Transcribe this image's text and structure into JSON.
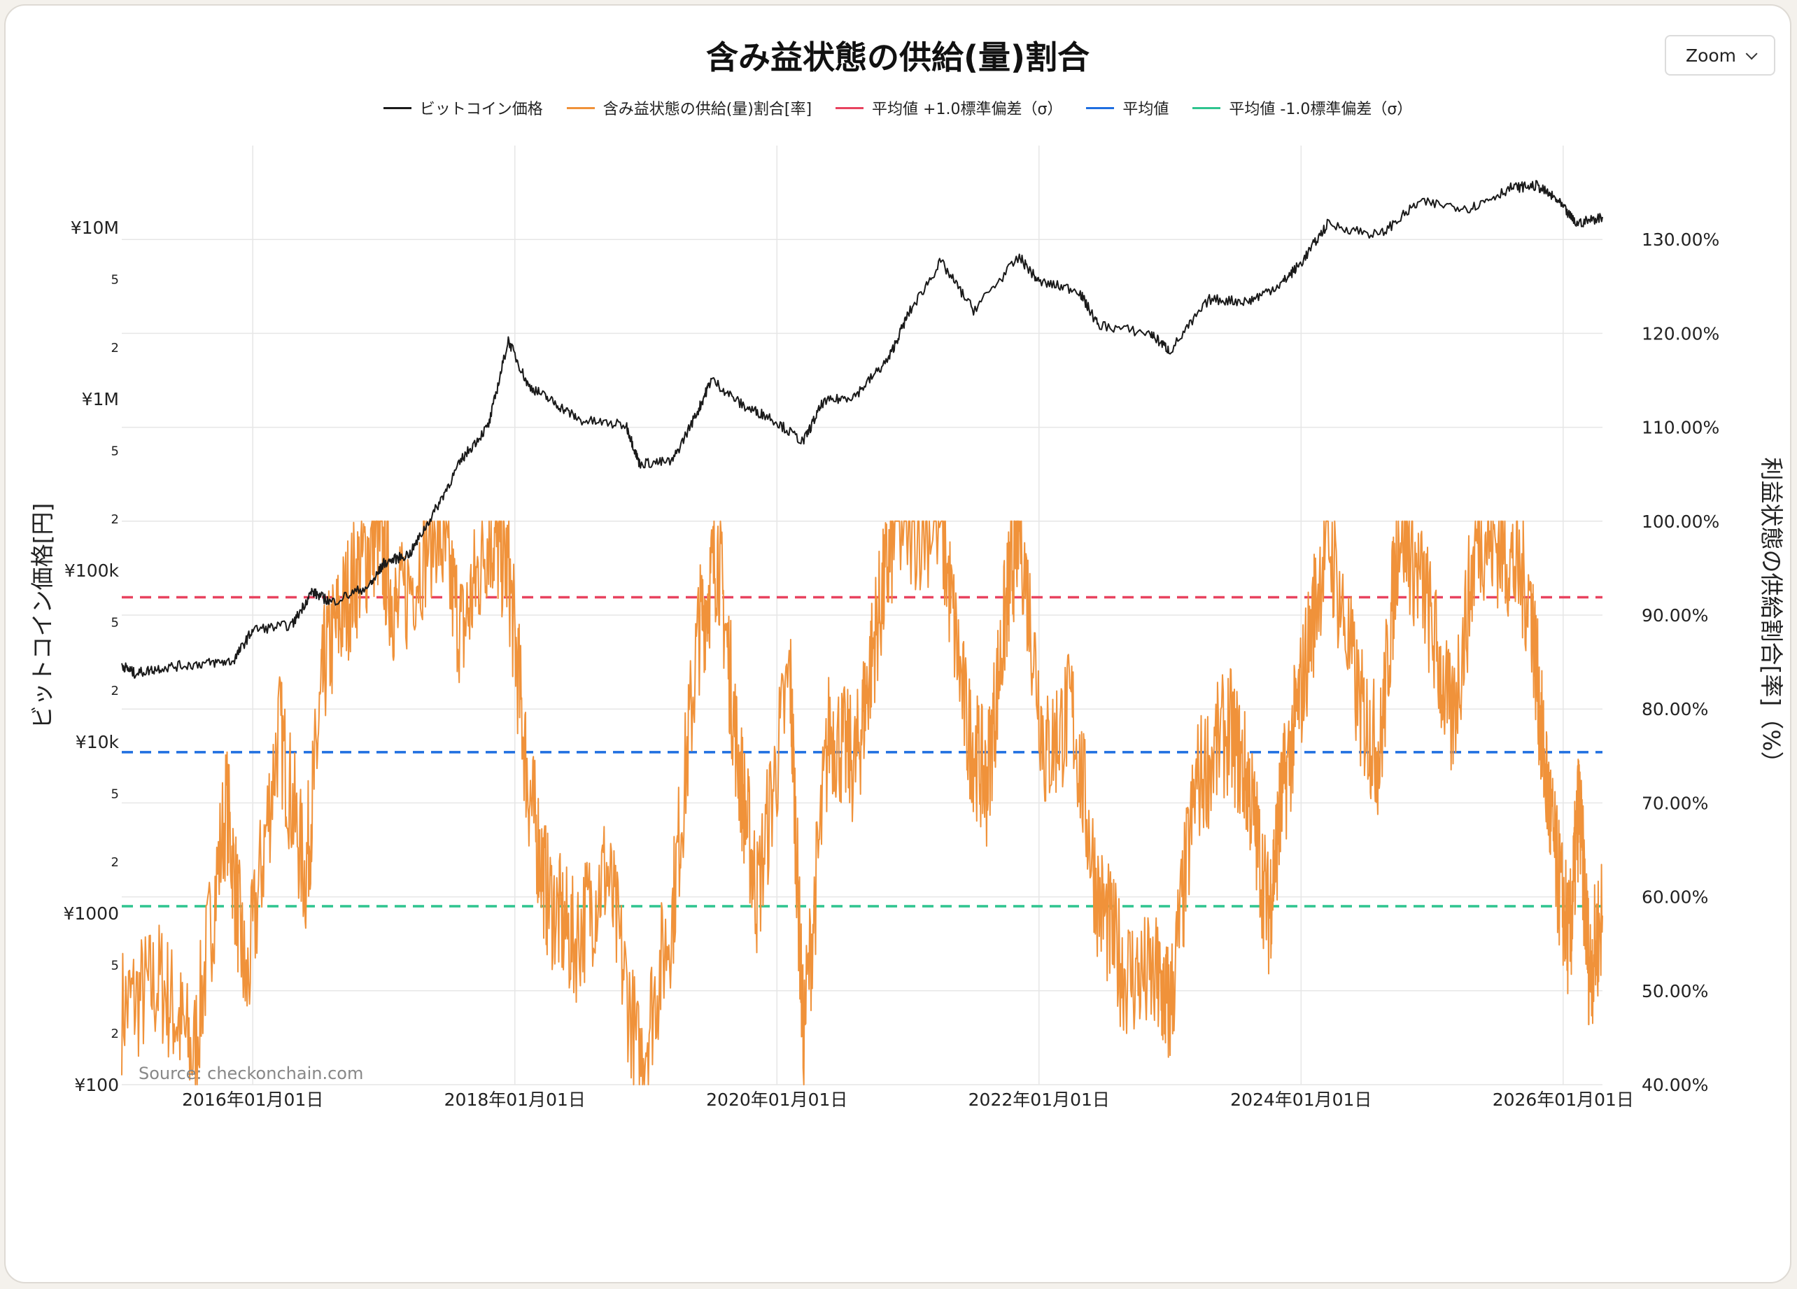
{
  "title": "含み益状態の供給(量)割合",
  "zoom_label": "Zoom",
  "source_text": "Source: checkonchain.com",
  "legend": [
    {
      "label": "ビットコイン価格",
      "color": "#1a1a1a"
    },
    {
      "label": "含み益状態の供給(量)割合[率]",
      "color": "#f0923a"
    },
    {
      "label": "平均値 +1.0標準偏差（σ）",
      "color": "#e8435f"
    },
    {
      "label": "平均値",
      "color": "#1f6fe0"
    },
    {
      "label": "平均値 -1.0標準偏差（σ）",
      "color": "#2fc48f"
    }
  ],
  "chart_data": {
    "type": "line",
    "x_axis": {
      "tick_labels": [
        "2016年01月01日",
        "2018年01月01日",
        "2020年01月01日",
        "2022年01月01日",
        "2024年01月01日",
        "2026年01月01日"
      ],
      "tick_years": [
        2016,
        2018,
        2020,
        2022,
        2024,
        2026
      ],
      "range": [
        2015.0,
        2026.3
      ]
    },
    "y_left": {
      "label": "ビットコイン価格[円]",
      "scale": "log",
      "range": [
        100,
        30000000
      ],
      "major_ticks": [
        {
          "value": 100,
          "label": "¥100"
        },
        {
          "value": 1000,
          "label": "¥1000"
        },
        {
          "value": 10000,
          "label": "¥10k"
        },
        {
          "value": 100000,
          "label": "¥100k"
        },
        {
          "value": 1000000,
          "label": "¥1M"
        },
        {
          "value": 10000000,
          "label": "¥10M"
        }
      ],
      "minor_ticks": [
        {
          "value": 200,
          "label": "2"
        },
        {
          "value": 500,
          "label": "5"
        },
        {
          "value": 2000,
          "label": "2"
        },
        {
          "value": 5000,
          "label": "5"
        },
        {
          "value": 20000,
          "label": "2"
        },
        {
          "value": 50000,
          "label": "5"
        },
        {
          "value": 200000,
          "label": "2"
        },
        {
          "value": 500000,
          "label": "5"
        },
        {
          "value": 2000000,
          "label": "2"
        },
        {
          "value": 5000000,
          "label": "5"
        }
      ]
    },
    "y_right": {
      "label": "利益状態の供給割合[率]（%）",
      "range": [
        40,
        140
      ],
      "ticks": [
        {
          "value": 40,
          "label": "40.00%"
        },
        {
          "value": 50,
          "label": "50.00%"
        },
        {
          "value": 60,
          "label": "60.00%"
        },
        {
          "value": 70,
          "label": "70.00%"
        },
        {
          "value": 80,
          "label": "80.00%"
        },
        {
          "value": 90,
          "label": "90.00%"
        },
        {
          "value": 100,
          "label": "100.00%"
        },
        {
          "value": 110,
          "label": "110.00%"
        },
        {
          "value": 120,
          "label": "120.00%"
        },
        {
          "value": 130,
          "label": "130.00%"
        }
      ]
    },
    "grid": true,
    "legend_position": "top-center",
    "series": [
      {
        "name": "ビットコイン価格",
        "axis": "left",
        "color": "#1a1a1a",
        "points": [
          [
            2015.0,
            28000
          ],
          [
            2015.1,
            25000
          ],
          [
            2015.3,
            27000
          ],
          [
            2015.6,
            28500
          ],
          [
            2015.85,
            29500
          ],
          [
            2016.0,
            45000
          ],
          [
            2016.3,
            48000
          ],
          [
            2016.45,
            75000
          ],
          [
            2016.6,
            65000
          ],
          [
            2016.9,
            82000
          ],
          [
            2017.0,
            110000
          ],
          [
            2017.2,
            125000
          ],
          [
            2017.4,
            230000
          ],
          [
            2017.6,
            450000
          ],
          [
            2017.8,
            700000
          ],
          [
            2017.95,
            2200000
          ],
          [
            2018.1,
            1200000
          ],
          [
            2018.3,
            950000
          ],
          [
            2018.5,
            750000
          ],
          [
            2018.85,
            700000
          ],
          [
            2018.95,
            420000
          ],
          [
            2019.2,
            430000
          ],
          [
            2019.4,
            860000
          ],
          [
            2019.5,
            1300000
          ],
          [
            2019.75,
            900000
          ],
          [
            2019.95,
            780000
          ],
          [
            2020.2,
            560000
          ],
          [
            2020.35,
            950000
          ],
          [
            2020.6,
            1050000
          ],
          [
            2020.85,
            1700000
          ],
          [
            2021.0,
            3100000
          ],
          [
            2021.25,
            6300000
          ],
          [
            2021.5,
            3300000
          ],
          [
            2021.85,
            6700000
          ],
          [
            2022.0,
            4800000
          ],
          [
            2022.3,
            4300000
          ],
          [
            2022.45,
            2700000
          ],
          [
            2022.85,
            2400000
          ],
          [
            2023.0,
            1900000
          ],
          [
            2023.3,
            3800000
          ],
          [
            2023.6,
            3700000
          ],
          [
            2023.85,
            4700000
          ],
          [
            2024.0,
            6200000
          ],
          [
            2024.2,
            10400000
          ],
          [
            2024.6,
            9000000
          ],
          [
            2024.9,
            14000000
          ],
          [
            2025.3,
            13000000
          ],
          [
            2025.6,
            17000000
          ],
          [
            2025.8,
            17500000
          ],
          [
            2025.95,
            14500000
          ],
          [
            2026.1,
            10500000
          ],
          [
            2026.3,
            11500000
          ]
        ]
      },
      {
        "name": "含み益状態の供給(量)割合[率]",
        "axis": "right",
        "color": "#f0923a",
        "points": [
          [
            2015.0,
            48
          ],
          [
            2015.3,
            51
          ],
          [
            2015.55,
            43
          ],
          [
            2015.8,
            70
          ],
          [
            2015.95,
            50
          ],
          [
            2016.2,
            78
          ],
          [
            2016.4,
            62
          ],
          [
            2016.55,
            85
          ],
          [
            2016.75,
            93
          ],
          [
            2016.95,
            99
          ],
          [
            2017.1,
            90
          ],
          [
            2017.4,
            100
          ],
          [
            2017.6,
            88
          ],
          [
            2017.8,
            99
          ],
          [
            2017.95,
            95
          ],
          [
            2018.1,
            72
          ],
          [
            2018.25,
            60
          ],
          [
            2018.45,
            55
          ],
          [
            2018.7,
            63
          ],
          [
            2018.95,
            42
          ],
          [
            2019.2,
            58
          ],
          [
            2019.4,
            88
          ],
          [
            2019.55,
            97
          ],
          [
            2019.7,
            75
          ],
          [
            2019.85,
            60
          ],
          [
            2020.1,
            84
          ],
          [
            2020.2,
            45
          ],
          [
            2020.4,
            78
          ],
          [
            2020.6,
            74
          ],
          [
            2020.75,
            88
          ],
          [
            2020.9,
            99
          ],
          [
            2021.25,
            100
          ],
          [
            2021.45,
            78
          ],
          [
            2021.6,
            72
          ],
          [
            2021.75,
            91
          ],
          [
            2021.85,
            100
          ],
          [
            2022.05,
            75
          ],
          [
            2022.25,
            80
          ],
          [
            2022.45,
            60
          ],
          [
            2022.65,
            52
          ],
          [
            2022.9,
            51
          ],
          [
            2023.0,
            48
          ],
          [
            2023.2,
            72
          ],
          [
            2023.45,
            78
          ],
          [
            2023.6,
            72
          ],
          [
            2023.75,
            58
          ],
          [
            2023.85,
            70
          ],
          [
            2024.0,
            82
          ],
          [
            2024.2,
            99
          ],
          [
            2024.45,
            80
          ],
          [
            2024.6,
            75
          ],
          [
            2024.75,
            100
          ],
          [
            2024.95,
            92
          ],
          [
            2025.15,
            78
          ],
          [
            2025.35,
            99
          ],
          [
            2025.55,
            97
          ],
          [
            2025.75,
            92
          ],
          [
            2025.85,
            75
          ],
          [
            2025.95,
            63
          ],
          [
            2026.05,
            55
          ],
          [
            2026.12,
            70
          ],
          [
            2026.2,
            52
          ],
          [
            2026.3,
            58
          ]
        ]
      },
      {
        "name": "平均値 +1.0標準偏差（σ）",
        "axis": "right",
        "color": "#e8435f",
        "dash": true,
        "value": 91.9
      },
      {
        "name": "平均値",
        "axis": "right",
        "color": "#1f6fe0",
        "dash": true,
        "value": 75.4
      },
      {
        "name": "平均値 -1.0標準偏差（σ）",
        "axis": "right",
        "color": "#2fc48f",
        "dash": true,
        "value": 59.0
      }
    ]
  }
}
